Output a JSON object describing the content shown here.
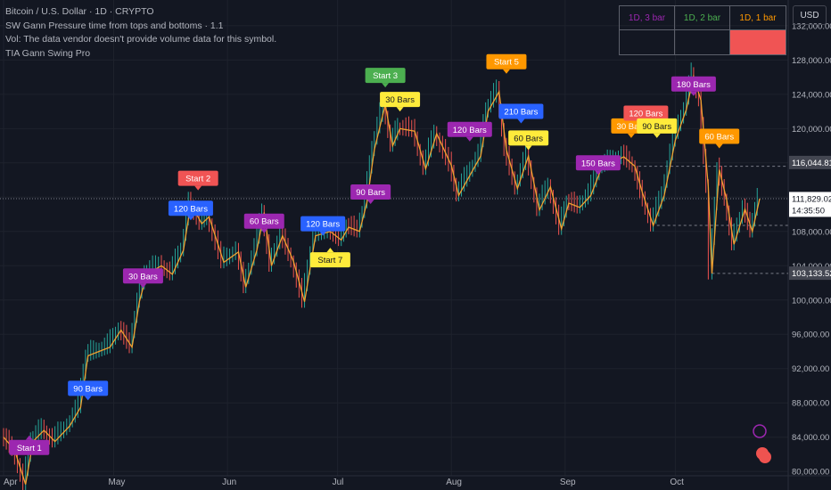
{
  "legend": {
    "line1": "Bitcoin / U.S. Dollar · 1D · CRYPTO",
    "line2": "SW Gann Pressure time from tops and bottoms · 1.1",
    "line3": "Vol: The data vendor doesn't provide volume data for this symbol.",
    "line4": "TIA Gann Swing Pro"
  },
  "currency": "USD",
  "tf_table": {
    "headers": [
      {
        "label": "1D, 3 bar",
        "color": "#9c27b0"
      },
      {
        "label": "1D, 2 bar",
        "color": "#4caf50"
      },
      {
        "label": "1D, 1 bar",
        "color": "#ff9800"
      }
    ],
    "row2_fill": [
      null,
      null,
      "#f05454"
    ]
  },
  "colors": {
    "background": "#131722",
    "up": "#26a69a",
    "down": "#ef5350",
    "swing_line": "#f0a030",
    "purple": "#9c27b0",
    "blue": "#2962ff",
    "red": "#f05454",
    "green": "#4caf50",
    "orange": "#ff9800",
    "yellow": "#ffeb3b"
  },
  "chart_data": {
    "type": "line",
    "y_axis": {
      "ticks": [
        80000,
        84000,
        88000,
        92000,
        96000,
        100000,
        104000,
        108000,
        112000,
        116000,
        120000,
        124000,
        128000,
        132000
      ],
      "tick_labels": [
        "80,000.00",
        "84,000.00",
        "88,000.00",
        "92,000.00",
        "96,000.00",
        "100,000.00",
        "104,000.00",
        "108,000.00",
        "112,000.00",
        "116,000.00",
        "120,000.00",
        "124,000.00",
        "128,000.00",
        "132,000.00"
      ],
      "range": [
        79500,
        135000
      ]
    },
    "x_axis": {
      "labels": [
        "Apr",
        "May",
        "Jun",
        "Jul",
        "Aug",
        "Sep",
        "Oct"
      ],
      "start": "2025-04-01",
      "end": "2025-10-24"
    },
    "price_labels": [
      {
        "value": 116044.81,
        "text": "116,044.81",
        "bg": "#434651",
        "color": "#ffffff"
      },
      {
        "value": 111829.02,
        "text": "111,829.02",
        "sub": "14:35:50",
        "bg": "#ffffff",
        "color": "#131722"
      },
      {
        "value": 103133.52,
        "text": "103,133.52",
        "bg": "#434651",
        "color": "#ffffff"
      }
    ],
    "series": [
      {
        "color": "#f0a030",
        "points": [
          [
            "2025-04-01",
            84000
          ],
          [
            "2025-04-04",
            82500
          ],
          [
            "2025-04-07",
            78500
          ],
          [
            "2025-04-09",
            83500
          ],
          [
            "2025-04-12",
            84800
          ],
          [
            "2025-04-15",
            83500
          ],
          [
            "2025-04-19",
            85300
          ],
          [
            "2025-04-22",
            87500
          ],
          [
            "2025-04-24",
            93500
          ],
          [
            "2025-04-27",
            94000
          ],
          [
            "2025-04-30",
            94500
          ],
          [
            "2025-05-03",
            96500
          ],
          [
            "2025-05-06",
            94500
          ],
          [
            "2025-05-08",
            99800
          ],
          [
            "2025-05-10",
            103000
          ],
          [
            "2025-05-14",
            104000
          ],
          [
            "2025-05-17",
            103000
          ],
          [
            "2025-05-20",
            105800
          ],
          [
            "2025-05-22",
            111200
          ],
          [
            "2025-05-25",
            108900
          ],
          [
            "2025-05-27",
            109700
          ],
          [
            "2025-05-31",
            104400
          ],
          [
            "2025-06-04",
            105600
          ],
          [
            "2025-06-06",
            101500
          ],
          [
            "2025-06-09",
            105800
          ],
          [
            "2025-06-11",
            110200
          ],
          [
            "2025-06-13",
            104000
          ],
          [
            "2025-06-16",
            107500
          ],
          [
            "2025-06-19",
            104500
          ],
          [
            "2025-06-22",
            99800
          ],
          [
            "2025-06-25",
            107500
          ],
          [
            "2025-06-29",
            108000
          ],
          [
            "2025-07-02",
            107000
          ],
          [
            "2025-07-04",
            108500
          ],
          [
            "2025-07-07",
            108000
          ],
          [
            "2025-07-09",
            111400
          ],
          [
            "2025-07-11",
            117500
          ],
          [
            "2025-07-14",
            122800
          ],
          [
            "2025-07-16",
            118000
          ],
          [
            "2025-07-18",
            120000
          ],
          [
            "2025-07-22",
            119700
          ],
          [
            "2025-07-25",
            115300
          ],
          [
            "2025-07-28",
            119400
          ],
          [
            "2025-08-01",
            115700
          ],
          [
            "2025-08-03",
            112200
          ],
          [
            "2025-08-06",
            114500
          ],
          [
            "2025-08-09",
            116800
          ],
          [
            "2025-08-11",
            122000
          ],
          [
            "2025-08-14",
            124300
          ],
          [
            "2025-08-16",
            117500
          ],
          [
            "2025-08-19",
            113000
          ],
          [
            "2025-08-22",
            116800
          ],
          [
            "2025-08-25",
            110500
          ],
          [
            "2025-08-28",
            113200
          ],
          [
            "2025-08-31",
            108300
          ],
          [
            "2025-09-02",
            111300
          ],
          [
            "2025-09-05",
            110800
          ],
          [
            "2025-09-08",
            112200
          ],
          [
            "2025-09-11",
            115500
          ],
          [
            "2025-09-14",
            116100
          ],
          [
            "2025-09-17",
            116700
          ],
          [
            "2025-09-20",
            115600
          ],
          [
            "2025-09-22",
            112600
          ],
          [
            "2025-09-25",
            108700
          ],
          [
            "2025-09-28",
            112200
          ],
          [
            "2025-10-01",
            118600
          ],
          [
            "2025-10-04",
            122200
          ],
          [
            "2025-10-06",
            126100
          ],
          [
            "2025-10-08",
            123300
          ],
          [
            "2025-10-10",
            113200
          ],
          [
            "2025-10-11",
            103100
          ],
          [
            "2025-10-13",
            115200
          ],
          [
            "2025-10-15",
            111700
          ],
          [
            "2025-10-17",
            106500
          ],
          [
            "2025-10-20",
            110600
          ],
          [
            "2025-10-22",
            108000
          ],
          [
            "2025-10-24",
            111829
          ]
        ]
      }
    ],
    "labels": [
      {
        "text": "Start 2",
        "date": "2025-05-24",
        "value": 112800,
        "color": "#f05454",
        "above": true
      },
      {
        "text": "120 Bars",
        "date": "2025-05-22",
        "value": 109300,
        "color": "#2962ff",
        "above": true
      },
      {
        "text": "30 Bars",
        "date": "2025-05-09",
        "value": 101400,
        "color": "#9c27b0",
        "above": true
      },
      {
        "text": "90 Bars",
        "date": "2025-04-24",
        "value": 88300,
        "color": "#2962ff",
        "above": true
      },
      {
        "text": "Start 1",
        "date": "2025-04-08",
        "value": 84200,
        "color": "#9c27b0",
        "above": false
      },
      {
        "text": "60 Bars",
        "date": "2025-06-11",
        "value": 107800,
        "color": "#9c27b0",
        "above": true
      },
      {
        "text": "120 Bars",
        "date": "2025-06-27",
        "value": 107500,
        "color": "#2962ff",
        "above": true
      },
      {
        "text": "Start 7",
        "date": "2025-06-29",
        "value": 106100,
        "color": "#ffeb3b",
        "above": false
      },
      {
        "text": "90 Bars",
        "date": "2025-07-10",
        "value": 111200,
        "color": "#9c27b0",
        "above": true
      },
      {
        "text": "Start 3",
        "date": "2025-07-14",
        "value": 124800,
        "color": "#4caf50",
        "above": true
      },
      {
        "text": "30 Bars",
        "date": "2025-07-18",
        "value": 122000,
        "color": "#ffeb3b",
        "above": true
      },
      {
        "text": "120 Bars",
        "date": "2025-08-06",
        "value": 118500,
        "color": "#9c27b0",
        "above": true
      },
      {
        "text": "Start 5",
        "date": "2025-08-16",
        "value": 126400,
        "color": "#ff9800",
        "above": true
      },
      {
        "text": "210 Bars",
        "date": "2025-08-20",
        "value": 120600,
        "color": "#2962ff",
        "above": true
      },
      {
        "text": "60 Bars",
        "date": "2025-08-22",
        "value": 117500,
        "color": "#ffeb3b",
        "above": true
      },
      {
        "text": "150 Bars",
        "date": "2025-09-10",
        "value": 114600,
        "color": "#9c27b0",
        "above": true
      },
      {
        "text": "30 Bars",
        "date": "2025-09-19",
        "value": 118900,
        "color": "#ff9800",
        "above": true
      },
      {
        "text": "120 Bars",
        "date": "2025-09-23",
        "value": 120400,
        "color": "#f05454",
        "above": true
      },
      {
        "text": "90 Bars",
        "date": "2025-09-26",
        "value": 118900,
        "color": "#ffeb3b",
        "above": true
      },
      {
        "text": "180 Bars",
        "date": "2025-10-06",
        "value": 123800,
        "color": "#9c27b0",
        "above": true
      },
      {
        "text": "60 Bars",
        "date": "2025-10-13",
        "value": 117700,
        "color": "#ff9800",
        "above": true
      }
    ],
    "grid": true
  }
}
